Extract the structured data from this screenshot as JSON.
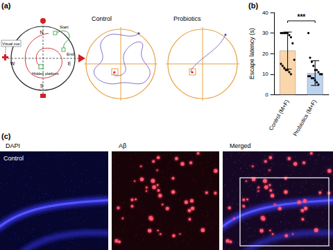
{
  "panels": {
    "a": {
      "label": "(a)",
      "diagram": {
        "north": "N",
        "south": "S",
        "east": "E",
        "west": "W",
        "visual_cue": "Visual cue",
        "start": "Start",
        "end": "End",
        "platform": "Hidden platform"
      },
      "tracks": [
        "Control",
        "Probiotics"
      ]
    },
    "b": {
      "label": "(b)"
    },
    "c": {
      "label": "(c)",
      "row_label": "Control",
      "channels": [
        "DAPI",
        "Aβ",
        "Merged"
      ]
    }
  },
  "chart_data": {
    "type": "bar",
    "categories": [
      "Control (M+F)",
      "Probiotics (M+F)"
    ],
    "values": [
      21.5,
      10.5
    ],
    "errors": [
      9,
      6
    ],
    "points": [
      [
        30,
        30,
        30,
        30,
        30,
        29,
        28,
        25,
        17,
        15,
        14,
        13,
        12,
        12,
        11,
        10
      ],
      [
        30,
        18,
        16,
        14,
        12,
        12,
        11,
        10,
        10,
        9,
        9,
        8,
        8,
        7,
        6,
        5
      ]
    ],
    "colors": [
      "#fbd6ab",
      "#bcd3f0"
    ],
    "ylabel": "Escape latency (s)",
    "ylim": [
      0,
      40
    ],
    "yticks": [
      0,
      10,
      20,
      30,
      40
    ],
    "annotations": [
      "***"
    ],
    "grid": false
  }
}
